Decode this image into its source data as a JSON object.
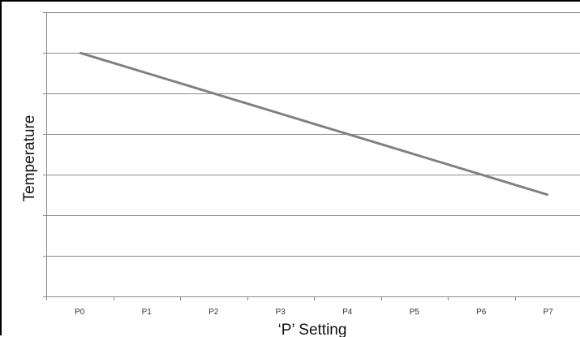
{
  "chart_data": {
    "type": "line",
    "title": "",
    "xlabel": "‘P’ Setting",
    "ylabel": "Temperature",
    "categories": [
      "P0",
      "P1",
      "P2",
      "P3",
      "P4",
      "P5",
      "P6",
      "P7"
    ],
    "series": [
      {
        "values": [
          6,
          5.5,
          5,
          4.5,
          4,
          3.5,
          3,
          2.5
        ]
      }
    ],
    "ylim": [
      0,
      7
    ],
    "grid": true,
    "y_tick_labels_shown": false,
    "line_color": "#808080",
    "grid_color": "#8c8c8c"
  }
}
